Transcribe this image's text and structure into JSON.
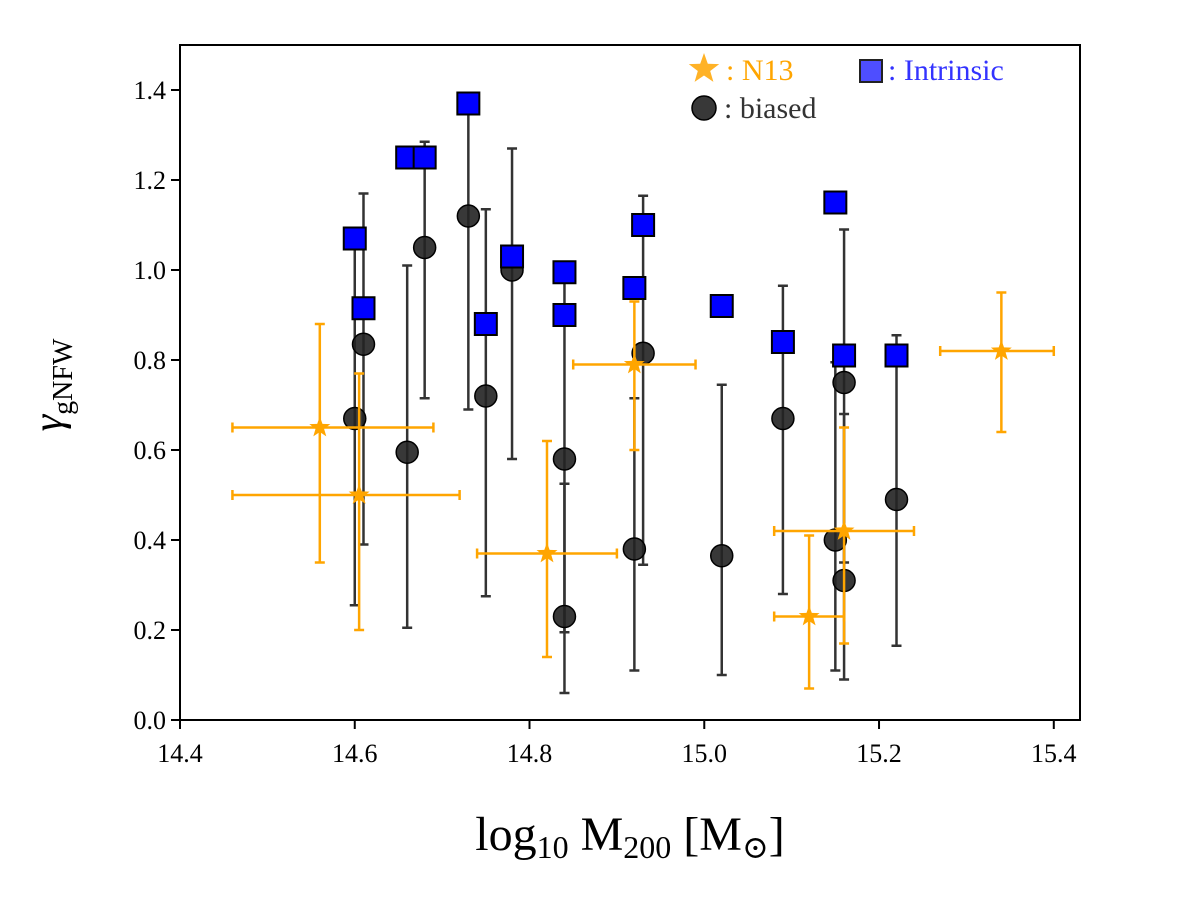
{
  "chart_data": {
    "type": "scatter",
    "xlabel": "log10 M200 [M⊙]",
    "xlabel_parts": {
      "base": "log",
      "base_sub": "10",
      "mid": " M",
      "mid_sub": "200",
      "unit": " [M",
      "unit_sub": "⊙",
      "close": "]"
    },
    "ylabel": "γgNFW",
    "ylabel_parts": {
      "symbol": "γ",
      "sub": "gNFW"
    },
    "xlim": [
      14.4,
      15.43
    ],
    "ylim": [
      0.0,
      1.5
    ],
    "xticks": [
      "14.4",
      "14.6",
      "14.8",
      "15.0",
      "15.2",
      "15.4"
    ],
    "yticks": [
      "0.0",
      "0.2",
      "0.4",
      "0.6",
      "0.8",
      "1.0",
      "1.2",
      "1.4"
    ],
    "colors": {
      "n13": "#FFA500",
      "intrinsic": "#0000FF",
      "biased": "#222222",
      "errbar": "#333333"
    },
    "legend": {
      "position": "top-right",
      "entries": [
        {
          "key": "n13",
          "label": ": N13",
          "color": "#FFA500"
        },
        {
          "key": "intrinsic",
          "label": ": Intrinsic",
          "color": "#3333FF"
        },
        {
          "key": "biased",
          "label": ": biased",
          "color": "#333333"
        }
      ]
    },
    "series": [
      {
        "name": "N13",
        "marker": "star",
        "points": [
          {
            "x": 14.56,
            "y": 0.65,
            "xerr": [
              0.1,
              0.13
            ],
            "yerr": [
              0.3,
              0.23
            ]
          },
          {
            "x": 14.605,
            "y": 0.5,
            "xerr": [
              0.145,
              0.115
            ],
            "yerr": [
              0.3,
              0.27
            ]
          },
          {
            "x": 14.92,
            "y": 0.79,
            "xerr": [
              0.07,
              0.07
            ],
            "yerr": [
              0.19,
              0.14
            ]
          },
          {
            "x": 14.82,
            "y": 0.37,
            "xerr": [
              0.08,
              0.08
            ],
            "yerr": [
              0.23,
              0.25
            ]
          },
          {
            "x": 15.16,
            "y": 0.42,
            "xerr": [
              0.08,
              0.08
            ],
            "yerr": [
              0.25,
              0.23
            ]
          },
          {
            "x": 15.12,
            "y": 0.23,
            "xerr": [
              0.04,
              0.04
            ],
            "yerr": [
              0.16,
              0.18
            ]
          },
          {
            "x": 15.34,
            "y": 0.82,
            "xerr": [
              0.07,
              0.06
            ],
            "yerr": [
              0.18,
              0.13
            ]
          }
        ]
      },
      {
        "name": "Intrinsic",
        "marker": "square",
        "points": [
          {
            "x": 14.6,
            "y": 1.07
          },
          {
            "x": 14.61,
            "y": 0.915
          },
          {
            "x": 14.66,
            "y": 1.25
          },
          {
            "x": 14.68,
            "y": 1.25
          },
          {
            "x": 14.73,
            "y": 1.37
          },
          {
            "x": 14.75,
            "y": 0.88
          },
          {
            "x": 14.78,
            "y": 1.03
          },
          {
            "x": 14.84,
            "y": 0.995
          },
          {
            "x": 14.84,
            "y": 0.9
          },
          {
            "x": 14.92,
            "y": 0.96
          },
          {
            "x": 14.93,
            "y": 1.1
          },
          {
            "x": 15.02,
            "y": 0.92
          },
          {
            "x": 15.09,
            "y": 0.84
          },
          {
            "x": 15.15,
            "y": 1.15
          },
          {
            "x": 15.16,
            "y": 0.81
          },
          {
            "x": 15.22,
            "y": 0.81
          }
        ]
      },
      {
        "name": "biased",
        "marker": "circle",
        "points": [
          {
            "x": 14.6,
            "y": 0.67,
            "ylow": 0.255,
            "yhigh": 1.05
          },
          {
            "x": 14.61,
            "y": 0.835,
            "ylow": 0.39,
            "yhigh": 1.17
          },
          {
            "x": 14.66,
            "y": 0.595,
            "ylow": 0.205,
            "yhigh": 1.01
          },
          {
            "x": 14.68,
            "y": 1.05,
            "ylow": 0.715,
            "yhigh": 1.285
          },
          {
            "x": 14.73,
            "y": 1.12,
            "ylow": 0.69,
            "yhigh": 1.37
          },
          {
            "x": 14.75,
            "y": 0.72,
            "ylow": 0.275,
            "yhigh": 1.135
          },
          {
            "x": 14.78,
            "y": 1.0,
            "ylow": 0.58,
            "yhigh": 1.27
          },
          {
            "x": 14.84,
            "y": 0.58,
            "ylow": 0.195,
            "yhigh": 1.0
          },
          {
            "x": 14.84,
            "y": 0.23,
            "ylow": 0.06,
            "yhigh": 0.525
          },
          {
            "x": 14.92,
            "y": 0.38,
            "ylow": 0.11,
            "yhigh": 0.715
          },
          {
            "x": 14.93,
            "y": 0.815,
            "ylow": 0.345,
            "yhigh": 1.165
          },
          {
            "x": 15.02,
            "y": 0.365,
            "ylow": 0.1,
            "yhigh": 0.745
          },
          {
            "x": 15.09,
            "y": 0.67,
            "ylow": 0.28,
            "yhigh": 0.965
          },
          {
            "x": 15.15,
            "y": 0.4,
            "ylow": 0.11,
            "yhigh": 0.795
          },
          {
            "x": 15.16,
            "y": 0.75,
            "ylow": 0.35,
            "yhigh": 1.09
          },
          {
            "x": 15.16,
            "y": 0.31,
            "ylow": 0.09,
            "yhigh": 0.68
          },
          {
            "x": 15.22,
            "y": 0.49,
            "ylow": 0.165,
            "yhigh": 0.855
          }
        ]
      }
    ]
  }
}
